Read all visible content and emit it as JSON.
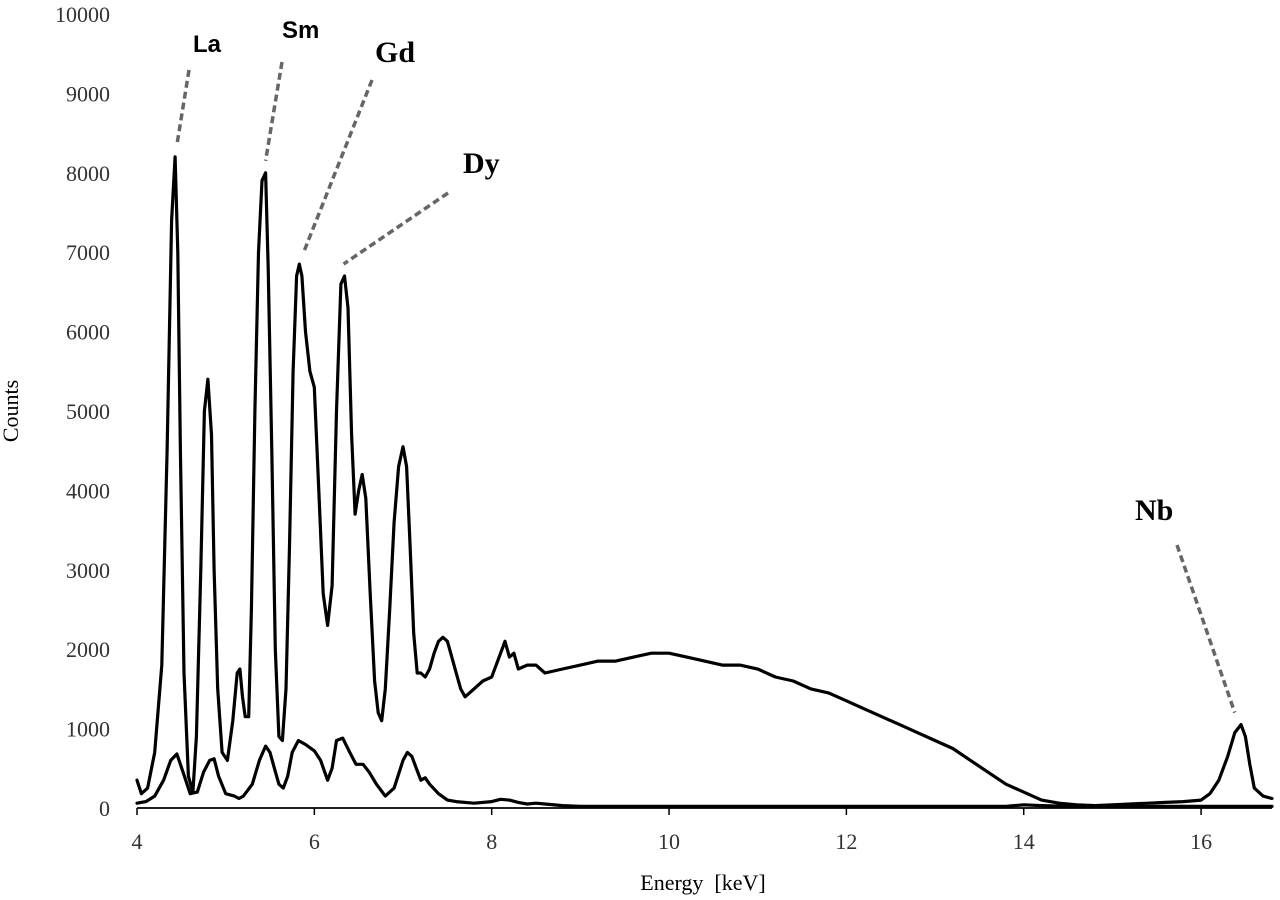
{
  "chart_data": {
    "type": "line",
    "xlabel": "Energy  [keV]",
    "ylabel": "Counts",
    "xlim": [
      4,
      16.8
    ],
    "ylim": [
      0,
      10000
    ],
    "xticks": [
      4,
      6,
      8,
      10,
      12,
      14,
      16
    ],
    "yticks": [
      0,
      1000,
      2000,
      3000,
      4000,
      5000,
      6000,
      7000,
      8000,
      9000,
      10000
    ],
    "grid": false,
    "series": [
      {
        "x": [
          4.0,
          4.05,
          4.12,
          4.2,
          4.28,
          4.34,
          4.39,
          4.43,
          4.46,
          4.49,
          4.53,
          4.58,
          4.63,
          4.67,
          4.72,
          4.76,
          4.8,
          4.84,
          4.87,
          4.91,
          4.96,
          5.02,
          5.08,
          5.13,
          5.16,
          5.19,
          5.22,
          5.26,
          5.29,
          5.33,
          5.37,
          5.41,
          5.45,
          5.48,
          5.52,
          5.56,
          5.6,
          5.64,
          5.68,
          5.72,
          5.76,
          5.8,
          5.83,
          5.86,
          5.9,
          5.95,
          6.0,
          6.05,
          6.1,
          6.15,
          6.2,
          6.25,
          6.3,
          6.34,
          6.38,
          6.42,
          6.46,
          6.5,
          6.54,
          6.58,
          6.63,
          6.68,
          6.72,
          6.76,
          6.8,
          6.85,
          6.9,
          6.95,
          7.0,
          7.04,
          7.08,
          7.12,
          7.16,
          7.2,
          7.25,
          7.3,
          7.35,
          7.4,
          7.45,
          7.5,
          7.55,
          7.6,
          7.65,
          7.7,
          7.8,
          7.9,
          8.0,
          8.1,
          8.15,
          8.2,
          8.25,
          8.3,
          8.4,
          8.5,
          8.6,
          8.8,
          9.0,
          9.2,
          9.4,
          9.6,
          9.8,
          10.0,
          10.2,
          10.4,
          10.6,
          10.8,
          11.0,
          11.2,
          11.4,
          11.6,
          11.8,
          12.0,
          12.2,
          12.4,
          12.6,
          12.8,
          13.0,
          13.2,
          13.4,
          13.6,
          13.8,
          14.0,
          14.2,
          14.4,
          14.6,
          14.8,
          15.0,
          15.2,
          15.4,
          15.6,
          15.8,
          16.0,
          16.1,
          16.2,
          16.3,
          16.38,
          16.45,
          16.5,
          16.55,
          16.6,
          16.7,
          16.8
        ],
        "y": [
          350,
          180,
          250,
          700,
          1800,
          4500,
          7400,
          8200,
          7000,
          4500,
          1700,
          400,
          200,
          900,
          3000,
          5000,
          5400,
          4700,
          3000,
          1500,
          700,
          600,
          1100,
          1700,
          1750,
          1400,
          1150,
          1150,
          2500,
          5000,
          7000,
          7900,
          8000,
          6800,
          4500,
          2000,
          900,
          850,
          1500,
          3300,
          5500,
          6700,
          6850,
          6700,
          6000,
          5500,
          5300,
          4000,
          2700,
          2300,
          2800,
          5000,
          6600,
          6700,
          6300,
          4700,
          3700,
          4000,
          4200,
          3900,
          2700,
          1600,
          1200,
          1100,
          1500,
          2500,
          3600,
          4300,
          4550,
          4300,
          3300,
          2200,
          1700,
          1700,
          1650,
          1750,
          1950,
          2100,
          2150,
          2100,
          1900,
          1700,
          1500,
          1400,
          1500,
          1600,
          1650,
          1950,
          2100,
          1900,
          1950,
          1750,
          1800,
          1800,
          1700,
          1750,
          1800,
          1850,
          1850,
          1900,
          1950,
          1950,
          1900,
          1850,
          1800,
          1800,
          1750,
          1650,
          1600,
          1500,
          1450,
          1350,
          1250,
          1150,
          1050,
          950,
          850,
          750,
          600,
          450,
          300,
          200,
          100,
          60,
          40,
          30,
          40,
          50,
          60,
          70,
          80,
          100,
          180,
          350,
          650,
          950,
          1050,
          900,
          550,
          250,
          150,
          120
        ]
      },
      {
        "x": [
          4.0,
          4.1,
          4.2,
          4.3,
          4.38,
          4.45,
          4.52,
          4.6,
          4.68,
          4.75,
          4.82,
          4.87,
          4.92,
          5.0,
          5.1,
          5.15,
          5.2,
          5.3,
          5.38,
          5.45,
          5.5,
          5.55,
          5.6,
          5.65,
          5.7,
          5.75,
          5.82,
          5.9,
          6.0,
          6.07,
          6.15,
          6.2,
          6.25,
          6.32,
          6.4,
          6.47,
          6.55,
          6.62,
          6.7,
          6.8,
          6.9,
          7.0,
          7.05,
          7.1,
          7.15,
          7.2,
          7.25,
          7.3,
          7.4,
          7.5,
          7.6,
          7.8,
          8.0,
          8.1,
          8.2,
          8.3,
          8.4,
          8.5,
          8.6,
          8.8,
          9.0,
          10.0,
          11.0,
          12.0,
          13.0,
          13.8,
          14.0,
          14.2,
          14.5,
          15.0,
          16.0,
          16.8
        ],
        "y": [
          60,
          80,
          150,
          350,
          600,
          680,
          450,
          180,
          200,
          450,
          600,
          620,
          400,
          180,
          150,
          120,
          150,
          300,
          600,
          780,
          700,
          500,
          300,
          250,
          400,
          700,
          850,
          800,
          720,
          600,
          350,
          500,
          850,
          880,
          700,
          550,
          550,
          450,
          300,
          150,
          250,
          600,
          700,
          650,
          500,
          350,
          380,
          300,
          180,
          100,
          80,
          60,
          80,
          110,
          100,
          70,
          50,
          60,
          50,
          30,
          20,
          20,
          20,
          20,
          20,
          20,
          40,
          30,
          20,
          20,
          20,
          20
        ]
      }
    ],
    "annotations": [
      {
        "text": "La",
        "x": 4.45,
        "y": 8200
      },
      {
        "text": "Sm",
        "x": 5.45,
        "y": 8000
      },
      {
        "text": "Gd",
        "x": 5.88,
        "y": 6850
      },
      {
        "text": "Dy",
        "x": 6.33,
        "y": 6700
      },
      {
        "text": "Nb",
        "x": 16.38,
        "y": 1050
      }
    ]
  }
}
